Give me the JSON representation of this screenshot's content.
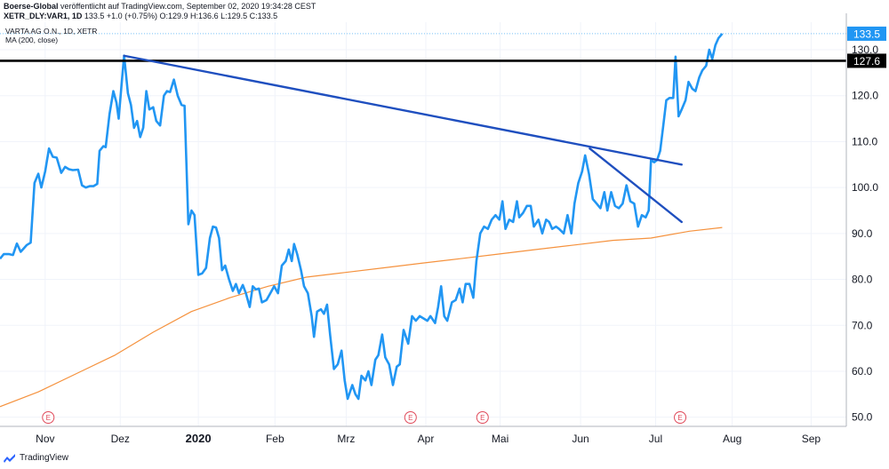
{
  "header": {
    "brand": "Boerse-Global",
    "published_text": "veröffentlicht auf TradingView.com, September 02, 2020 19:34:28 CEST",
    "symbol": "XETR_DLY:VAR1, 1D",
    "last": "133.5",
    "change": "+1.0 (+0.75%)",
    "ohlc_o_label": "O:",
    "ohlc_o": "129.9",
    "ohlc_h_label": "H:",
    "ohlc_h": "136.6",
    "ohlc_l_label": "L:",
    "ohlc_l": "129.5",
    "ohlc_c_label": "C:",
    "ohlc_c": "133.5"
  },
  "legend": {
    "instrument": "VARTA AG O.N., 1D, XETR",
    "ma_label": "MA (200, close)"
  },
  "footer": {
    "logo_text": "TradingView"
  },
  "colors": {
    "price_line": "#2196f3",
    "ma_line": "#f5923e",
    "trend_line": "#1f4fbf",
    "resistance_line": "#000000",
    "earnings_marker": "#e04a5a",
    "grid": "#f0f3fa",
    "axis_border": "#b2b5be"
  },
  "chart_data": {
    "type": "line",
    "title": "",
    "xlabel": "",
    "ylabel": "",
    "ylim": [
      48,
      136
    ],
    "y_ticks": [
      "50.0",
      "60.0",
      "70.0",
      "80.0",
      "90.0",
      "100.0",
      "110.0",
      "120.0",
      "130.0"
    ],
    "x_ticks": [
      {
        "label": "Nov",
        "x": 0.09,
        "bold": false
      },
      {
        "label": "Dez",
        "x": 1.07,
        "bold": false
      },
      {
        "label": "2020",
        "x": 2.09,
        "bold": true
      },
      {
        "label": "Feb",
        "x": 3.09,
        "bold": false
      },
      {
        "label": "Mrz",
        "x": 4.02,
        "bold": false
      },
      {
        "label": "Apr",
        "x": 5.06,
        "bold": false
      },
      {
        "label": "Mai",
        "x": 6.03,
        "bold": false
      },
      {
        "label": "Jun",
        "x": 7.08,
        "bold": false
      },
      {
        "label": "Jul",
        "x": 8.06,
        "bold": false
      },
      {
        "label": "Aug",
        "x": 9.06,
        "bold": false
      },
      {
        "label": "Sep",
        "x": 10.09,
        "bold": false
      }
    ],
    "xlim": [
      -0.5,
      10.55
    ],
    "series": [
      {
        "name": "VARTA AG O.N., 1D, XETR",
        "kind": "price",
        "points": [
          [
            -0.5,
            84.5
          ],
          [
            -0.45,
            85.5
          ],
          [
            -0.38,
            85.5
          ],
          [
            -0.33,
            85.3
          ],
          [
            -0.28,
            87.8
          ],
          [
            -0.23,
            86.0
          ],
          [
            -0.15,
            87.5
          ],
          [
            -0.1,
            88.0
          ],
          [
            -0.05,
            101.0
          ],
          [
            0.0,
            103.0
          ],
          [
            0.04,
            100.0
          ],
          [
            0.09,
            103.5
          ],
          [
            0.14,
            108.5
          ],
          [
            0.19,
            106.7
          ],
          [
            0.24,
            106.5
          ],
          [
            0.3,
            103.2
          ],
          [
            0.35,
            104.5
          ],
          [
            0.4,
            104.0
          ],
          [
            0.45,
            103.8
          ],
          [
            0.52,
            103.9
          ],
          [
            0.57,
            100.5
          ],
          [
            0.62,
            100.0
          ],
          [
            0.67,
            100.3
          ],
          [
            0.72,
            100.3
          ],
          [
            0.77,
            100.8
          ],
          [
            0.8,
            108.0
          ],
          [
            0.85,
            109.0
          ],
          [
            0.88,
            108.8
          ],
          [
            0.93,
            116.0
          ],
          [
            0.98,
            121.0
          ],
          [
            1.02,
            118.5
          ],
          [
            1.05,
            115.0
          ],
          [
            1.09,
            123.0
          ],
          [
            1.12,
            128.7
          ],
          [
            1.17,
            120.5
          ],
          [
            1.21,
            118.0
          ],
          [
            1.25,
            113.0
          ],
          [
            1.29,
            114.5
          ],
          [
            1.33,
            111.0
          ],
          [
            1.37,
            113.0
          ],
          [
            1.41,
            121.0
          ],
          [
            1.45,
            117.0
          ],
          [
            1.5,
            117.5
          ],
          [
            1.54,
            114.5
          ],
          [
            1.59,
            113.5
          ],
          [
            1.64,
            120.0
          ],
          [
            1.68,
            121.0
          ],
          [
            1.72,
            120.8
          ],
          [
            1.77,
            123.5
          ],
          [
            1.82,
            120.0
          ],
          [
            1.87,
            118.0
          ],
          [
            1.91,
            117.8
          ],
          [
            1.96,
            92.0
          ],
          [
            2.0,
            95.0
          ],
          [
            2.04,
            94.0
          ],
          [
            2.09,
            81.0
          ],
          [
            2.14,
            81.3
          ],
          [
            2.19,
            82.5
          ],
          [
            2.24,
            89.0
          ],
          [
            2.28,
            91.5
          ],
          [
            2.32,
            91.3
          ],
          [
            2.36,
            89.0
          ],
          [
            2.4,
            82.0
          ],
          [
            2.44,
            83.0
          ],
          [
            2.49,
            80.0
          ],
          [
            2.54,
            77.5
          ],
          [
            2.58,
            79.0
          ],
          [
            2.62,
            77.0
          ],
          [
            2.67,
            78.8
          ],
          [
            2.71,
            77.0
          ],
          [
            2.76,
            74.0
          ],
          [
            2.8,
            78.5
          ],
          [
            2.84,
            77.8
          ],
          [
            2.88,
            78.0
          ],
          [
            2.92,
            75.0
          ],
          [
            2.98,
            75.5
          ],
          [
            3.03,
            77.0
          ],
          [
            3.08,
            78.5
          ],
          [
            3.13,
            77.0
          ],
          [
            3.18,
            83.0
          ],
          [
            3.23,
            84.0
          ],
          [
            3.27,
            86.5
          ],
          [
            3.31,
            84.0
          ],
          [
            3.34,
            87.7
          ],
          [
            3.38,
            85.5
          ],
          [
            3.43,
            82.0
          ],
          [
            3.47,
            78.5
          ],
          [
            3.52,
            77.0
          ],
          [
            3.57,
            72.0
          ],
          [
            3.6,
            67.5
          ],
          [
            3.64,
            73.0
          ],
          [
            3.69,
            73.5
          ],
          [
            3.73,
            72.5
          ],
          [
            3.77,
            74.5
          ],
          [
            3.81,
            68.0
          ],
          [
            3.86,
            60.5
          ],
          [
            3.91,
            61.5
          ],
          [
            3.96,
            64.5
          ],
          [
            4.0,
            58.0
          ],
          [
            4.04,
            54.0
          ],
          [
            4.1,
            57.0
          ],
          [
            4.14,
            55.0
          ],
          [
            4.18,
            54.0
          ],
          [
            4.22,
            59.0
          ],
          [
            4.27,
            58.0
          ],
          [
            4.31,
            60.0
          ],
          [
            4.35,
            57.0
          ],
          [
            4.4,
            62.5
          ],
          [
            4.44,
            63.5
          ],
          [
            4.49,
            68.0
          ],
          [
            4.53,
            63.0
          ],
          [
            4.58,
            61.5
          ],
          [
            4.63,
            57.0
          ],
          [
            4.68,
            61.0
          ],
          [
            4.72,
            61.5
          ],
          [
            4.77,
            69.0
          ],
          [
            4.83,
            66.0
          ],
          [
            4.88,
            72.0
          ],
          [
            4.93,
            71.0
          ],
          [
            4.98,
            72.0
          ],
          [
            5.03,
            71.5
          ],
          [
            5.08,
            71.0
          ],
          [
            5.12,
            72.0
          ],
          [
            5.18,
            70.5
          ],
          [
            5.22,
            74.0
          ],
          [
            5.26,
            78.5
          ],
          [
            5.3,
            72.0
          ],
          [
            5.34,
            71.0
          ],
          [
            5.4,
            75.0
          ],
          [
            5.45,
            75.5
          ],
          [
            5.5,
            78.0
          ],
          [
            5.54,
            75.0
          ],
          [
            5.58,
            79.0
          ],
          [
            5.63,
            79.0
          ],
          [
            5.68,
            76.0
          ],
          [
            5.72,
            84.0
          ],
          [
            5.77,
            90.0
          ],
          [
            5.82,
            91.5
          ],
          [
            5.87,
            91.0
          ],
          [
            5.92,
            93.0
          ],
          [
            5.97,
            94.0
          ],
          [
            6.02,
            93.0
          ],
          [
            6.06,
            97.0
          ],
          [
            6.1,
            91.0
          ],
          [
            6.15,
            93.0
          ],
          [
            6.2,
            92.5
          ],
          [
            6.25,
            97.0
          ],
          [
            6.28,
            93.5
          ],
          [
            6.33,
            94.5
          ],
          [
            6.38,
            96.0
          ],
          [
            6.43,
            96.0
          ],
          [
            6.47,
            91.5
          ],
          [
            6.53,
            93.0
          ],
          [
            6.58,
            90.0
          ],
          [
            6.63,
            93.0
          ],
          [
            6.67,
            92.5
          ],
          [
            6.71,
            91.0
          ],
          [
            6.76,
            91.5
          ],
          [
            6.8,
            91.0
          ],
          [
            6.86,
            90.0
          ],
          [
            6.91,
            94.0
          ],
          [
            6.96,
            90.0
          ],
          [
            7.0,
            96.5
          ],
          [
            7.05,
            101.0
          ],
          [
            7.1,
            103.5
          ],
          [
            7.14,
            107.0
          ],
          [
            7.19,
            103.0
          ],
          [
            7.24,
            97.5
          ],
          [
            7.29,
            96.5
          ],
          [
            7.34,
            95.5
          ],
          [
            7.39,
            99.0
          ],
          [
            7.43,
            95.0
          ],
          [
            7.48,
            99.0
          ],
          [
            7.53,
            96.0
          ],
          [
            7.58,
            95.5
          ],
          [
            7.63,
            96.5
          ],
          [
            7.68,
            100.5
          ],
          [
            7.73,
            97.0
          ],
          [
            7.78,
            96.5
          ],
          [
            7.83,
            91.5
          ],
          [
            7.88,
            94.0
          ],
          [
            7.93,
            93.5
          ],
          [
            7.97,
            95.0
          ],
          [
            8.0,
            106.0
          ],
          [
            8.04,
            105.5
          ],
          [
            8.08,
            106.0
          ],
          [
            8.12,
            108.0
          ],
          [
            8.16,
            113.5
          ],
          [
            8.2,
            119.0
          ],
          [
            8.24,
            119.5
          ],
          [
            8.29,
            119.5
          ],
          [
            8.32,
            128.5
          ],
          [
            8.36,
            115.5
          ],
          [
            8.4,
            117.0
          ],
          [
            8.45,
            119.0
          ],
          [
            8.49,
            123.0
          ],
          [
            8.54,
            121.5
          ],
          [
            8.58,
            121.0
          ],
          [
            8.63,
            124.0
          ],
          [
            8.67,
            125.5
          ],
          [
            8.72,
            126.5
          ],
          [
            8.76,
            130.0
          ],
          [
            8.8,
            128.0
          ],
          [
            8.84,
            131.0
          ],
          [
            8.88,
            132.5
          ],
          [
            8.93,
            133.5
          ]
        ]
      },
      {
        "name": "MA (200, close)",
        "kind": "ma",
        "points": [
          [
            -0.5,
            52.3
          ],
          [
            0.0,
            55.5
          ],
          [
            0.5,
            59.5
          ],
          [
            1.0,
            63.5
          ],
          [
            1.5,
            68.5
          ],
          [
            2.0,
            73.0
          ],
          [
            2.5,
            76.0
          ],
          [
            3.0,
            78.5
          ],
          [
            3.5,
            80.5
          ],
          [
            4.0,
            81.5
          ],
          [
            4.5,
            82.5
          ],
          [
            5.0,
            83.5
          ],
          [
            5.5,
            84.5
          ],
          [
            6.0,
            85.5
          ],
          [
            6.5,
            86.5
          ],
          [
            7.0,
            87.5
          ],
          [
            7.5,
            88.5
          ],
          [
            8.0,
            89.0
          ],
          [
            8.5,
            90.5
          ],
          [
            8.93,
            91.3
          ]
        ]
      }
    ],
    "annotations": {
      "resistance_level": 127.6,
      "last_price": 133.5,
      "trend_lines": [
        {
          "from": [
            1.12,
            128.7
          ],
          "to": [
            8.4,
            105.0
          ]
        },
        {
          "from": [
            7.2,
            108.5
          ],
          "to": [
            8.4,
            92.5
          ]
        }
      ],
      "earnings_markers": [
        0.13,
        4.86,
        5.8,
        8.38
      ],
      "earnings_marker_label": "E"
    }
  }
}
